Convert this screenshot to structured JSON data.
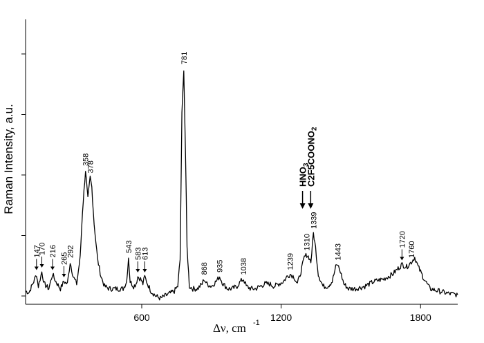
{
  "chart_data": {
    "type": "line",
    "xlabel": "Δν, cm",
    "xlabel_superscript": "-1",
    "ylabel": "Raman Intensity, a.u.",
    "xlim": [
      100,
      1960
    ],
    "ylim": [
      0,
      100
    ],
    "x_ticks": [
      600,
      1200,
      1800
    ],
    "y_ticks": [
      0,
      25,
      50,
      75,
      100
    ],
    "grid": false,
    "legend": "none",
    "line_color": "#000000",
    "series": [
      {
        "x": [
          100,
          115,
          135,
          147,
          155,
          170,
          180,
          200,
          216,
          230,
          250,
          265,
          280,
          292,
          305,
          320,
          335,
          345,
          358,
          368,
          378,
          385,
          395,
          410,
          425,
          440,
          460,
          480,
          500,
          520,
          535,
          543,
          550,
          565,
          575,
          583,
          595,
          605,
          613,
          625,
          640,
          660,
          680,
          700,
          720,
          740,
          755,
          765,
          773,
          781,
          788,
          795,
          805,
          820,
          840,
          860,
          868,
          880,
          900,
          920,
          935,
          950,
          970,
          990,
          1010,
          1025,
          1038,
          1050,
          1070,
          1090,
          1110,
          1130,
          1150,
          1170,
          1190,
          1210,
          1225,
          1239,
          1255,
          1270,
          1285,
          1300,
          1310,
          1320,
          1328,
          1339,
          1348,
          1360,
          1380,
          1400,
          1420,
          1435,
          1443,
          1455,
          1470,
          1490,
          1520,
          1560,
          1600,
          1640,
          1680,
          1700,
          1720,
          1740,
          1760,
          1775,
          1790,
          1810,
          1840,
          1880,
          1920,
          1960
        ],
        "values": [
          2,
          1.5,
          6,
          9,
          4,
          10,
          5,
          3,
          9,
          6,
          3,
          6,
          5,
          14,
          8,
          5,
          16,
          35,
          52,
          40,
          49,
          45,
          30,
          15,
          8,
          4,
          3,
          3,
          3,
          3,
          6,
          16,
          6,
          4,
          5,
          8,
          7,
          5,
          8,
          5,
          2,
          0,
          -1,
          0,
          1,
          2,
          4,
          15,
          75,
          94,
          60,
          20,
          4,
          3,
          3,
          5,
          7,
          5,
          4,
          6,
          8,
          5,
          3,
          3,
          4,
          6,
          7,
          4,
          3,
          3,
          4,
          5,
          5,
          4,
          5,
          6,
          8,
          9,
          8,
          5,
          10,
          16,
          17,
          16,
          14,
          26,
          20,
          9,
          4,
          4,
          6,
          12,
          13,
          10,
          5,
          3,
          3,
          4,
          6,
          7,
          9,
          11,
          13,
          12,
          14,
          16,
          12,
          8,
          3,
          2,
          1,
          0.5
        ]
      }
    ],
    "annotations": [
      {
        "text": "147",
        "x": 147,
        "y": 9,
        "arrow": true
      },
      {
        "text": "170",
        "x": 170,
        "y": 10,
        "arrow": true
      },
      {
        "text": "216",
        "x": 216,
        "y": 9,
        "arrow": true
      },
      {
        "text": "265",
        "x": 265,
        "y": 6,
        "arrow": true
      },
      {
        "text": "292",
        "x": 292,
        "y": 14,
        "arrow": false
      },
      {
        "text": "358",
        "x": 358,
        "y": 52,
        "arrow": false
      },
      {
        "text": "378",
        "x": 378,
        "y": 49,
        "arrow": false
      },
      {
        "text": "543",
        "x": 543,
        "y": 16,
        "arrow": false
      },
      {
        "text": "583",
        "x": 583,
        "y": 8,
        "arrow": true
      },
      {
        "text": "613",
        "x": 613,
        "y": 8,
        "arrow": true
      },
      {
        "text": "781",
        "x": 781,
        "y": 94,
        "arrow": false
      },
      {
        "text": "868",
        "x": 868,
        "y": 7,
        "arrow": false
      },
      {
        "text": "935",
        "x": 935,
        "y": 8,
        "arrow": false
      },
      {
        "text": "1038",
        "x": 1038,
        "y": 7,
        "arrow": false
      },
      {
        "text": "1239",
        "x": 1239,
        "y": 9,
        "arrow": false
      },
      {
        "text": "1310",
        "x": 1310,
        "y": 17,
        "arrow": false
      },
      {
        "text": "1339",
        "x": 1339,
        "y": 26,
        "arrow": false
      },
      {
        "text": "1443",
        "x": 1443,
        "y": 13,
        "arrow": false
      },
      {
        "text": "1720",
        "x": 1720,
        "y": 13,
        "arrow": true
      },
      {
        "text": "1760",
        "x": 1760,
        "y": 14,
        "arrow": false
      }
    ],
    "species_labels": [
      {
        "text": "HNO",
        "sub": "3",
        "x": 1310
      },
      {
        "text": "C2F5COONO",
        "sub": "2",
        "x": 1339
      }
    ]
  }
}
